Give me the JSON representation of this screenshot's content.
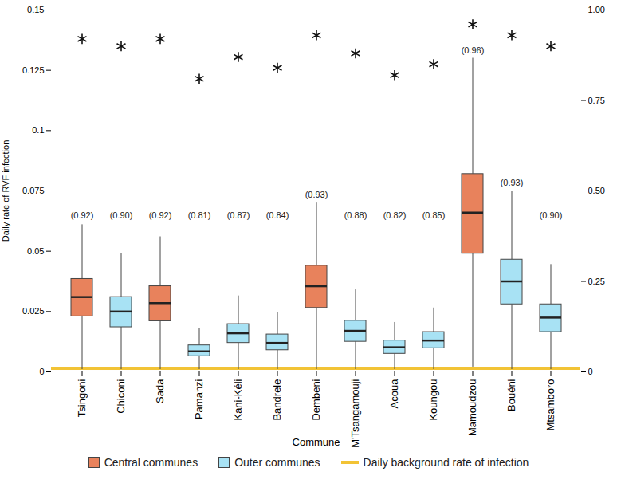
{
  "chart_data": {
    "type": "box",
    "x_label": "Commune",
    "y_label": "Daily rate of RVF infection",
    "categories": [
      "Tsingoni",
      "Chiconi",
      "Sada",
      "Pamanzi",
      "Kani-Kéli",
      "Bandrele",
      "Dembeni",
      "M'Tsangamouji",
      "Acoua",
      "Koungou",
      "Mamoudzou",
      "Bouéni",
      "Mtsamboro"
    ],
    "series": [
      {
        "name": "Central communes",
        "color": "#E8825C"
      },
      {
        "name": "Outer communes",
        "color": "#A8E2F4"
      }
    ],
    "box_group": [
      "Central communes",
      "Outer communes",
      "Central communes",
      "Outer communes",
      "Outer communes",
      "Outer communes",
      "Central communes",
      "Outer communes",
      "Outer communes",
      "Outer communes",
      "Central communes",
      "Outer communes",
      "Outer communes"
    ],
    "whisker_low": [
      0.001,
      0.001,
      0.001,
      0.001,
      0.001,
      0.001,
      0.001,
      0.001,
      0.001,
      0.001,
      0.002,
      0.001,
      0.001
    ],
    "q1": [
      0.023,
      0.0185,
      0.021,
      0.0065,
      0.012,
      0.009,
      0.0265,
      0.0125,
      0.0075,
      0.0098,
      0.049,
      0.028,
      0.0165
    ],
    "median": [
      0.031,
      0.025,
      0.0285,
      0.0085,
      0.016,
      0.012,
      0.0355,
      0.017,
      0.0102,
      0.013,
      0.066,
      0.0375,
      0.0225
    ],
    "q3": [
      0.0385,
      0.031,
      0.0355,
      0.011,
      0.0198,
      0.0155,
      0.044,
      0.0212,
      0.013,
      0.0165,
      0.082,
      0.0465,
      0.028
    ],
    "whisker_high": [
      0.061,
      0.049,
      0.056,
      0.018,
      0.0315,
      0.0245,
      0.07,
      0.034,
      0.0205,
      0.0265,
      0.13,
      0.075,
      0.0445
    ],
    "proportions": {
      "axis": "y2",
      "marker": "asterisk",
      "values": [
        0.92,
        0.9,
        0.92,
        0.81,
        0.87,
        0.84,
        0.93,
        0.88,
        0.82,
        0.85,
        0.96,
        0.93,
        0.9
      ],
      "value_labels": [
        "(0.92)",
        "(0.90)",
        "(0.92)",
        "(0.81)",
        "(0.87)",
        "(0.84)",
        "(0.93)",
        "(0.88)",
        "(0.82)",
        "(0.85)",
        "(0.96)",
        "(0.93)",
        "(0.90)"
      ]
    },
    "background": {
      "name": "Daily background rate of infection",
      "color": "#F2C335",
      "value": 0.0015
    },
    "ylim": [
      0,
      0.15
    ],
    "yticks": [
      0,
      0.025,
      0.05,
      0.075,
      0.1,
      0.125,
      0.15
    ],
    "y2lim": [
      0,
      1
    ],
    "y2ticks": [
      0,
      {
        "value": 0.25,
        "label": "0.25"
      },
      {
        "value": 0.5,
        "label": "0.50"
      },
      {
        "value": 0.75,
        "label": "0.75"
      },
      {
        "value": 1,
        "label": "1.00"
      }
    ],
    "grid": false,
    "legend": "bottom",
    "data_labels": true
  }
}
